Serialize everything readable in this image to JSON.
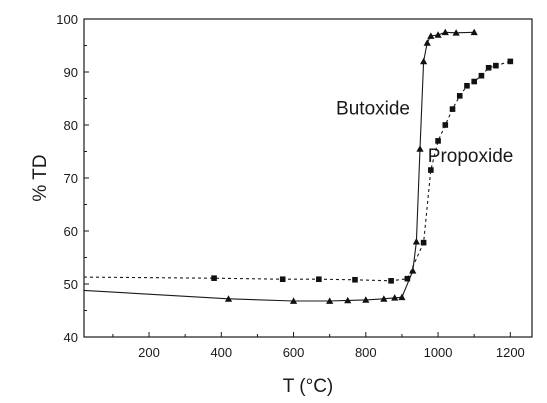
{
  "chart_data": {
    "type": "line",
    "xlabel": "T (°C)",
    "ylabel": "% TD",
    "xlim": [
      20,
      1260
    ],
    "ylim": [
      40,
      100
    ],
    "xticks": [
      200,
      400,
      600,
      800,
      1000,
      1200
    ],
    "yticks": [
      40,
      50,
      60,
      70,
      80,
      90,
      100
    ],
    "series": [
      {
        "name": "Butoxide",
        "marker": "triangle",
        "line_style": "solid",
        "points": [
          [
            20,
            48.8
          ],
          [
            420,
            47.2
          ],
          [
            600,
            46.8
          ],
          [
            700,
            46.8
          ],
          [
            750,
            46.9
          ],
          [
            800,
            47.0
          ],
          [
            850,
            47.2
          ],
          [
            880,
            47.4
          ],
          [
            900,
            47.5
          ],
          [
            930,
            52.5
          ],
          [
            940,
            58.0
          ],
          [
            950,
            75.5
          ],
          [
            960,
            92.0
          ],
          [
            970,
            95.5
          ],
          [
            980,
            96.8
          ],
          [
            1000,
            97.0
          ],
          [
            1020,
            97.5
          ],
          [
            1050,
            97.4
          ],
          [
            1100,
            97.5
          ]
        ]
      },
      {
        "name": "Propoxide",
        "marker": "square",
        "line_style": "dashed",
        "points": [
          [
            20,
            51.3
          ],
          [
            380,
            51.1
          ],
          [
            570,
            50.9
          ],
          [
            670,
            50.9
          ],
          [
            770,
            50.8
          ],
          [
            870,
            50.6
          ],
          [
            915,
            51.0
          ],
          [
            960,
            57.8
          ],
          [
            980,
            71.5
          ],
          [
            1000,
            77.0
          ],
          [
            1020,
            80.0
          ],
          [
            1040,
            83.0
          ],
          [
            1060,
            85.5
          ],
          [
            1080,
            87.4
          ],
          [
            1100,
            88.2
          ],
          [
            1120,
            89.3
          ],
          [
            1140,
            90.8
          ],
          [
            1160,
            91.2
          ],
          [
            1200,
            92.0
          ]
        ]
      }
    ],
    "annotations": [
      {
        "text": "Butoxide",
        "x": 820,
        "y": 82
      },
      {
        "text": "Propoxide",
        "x": 1090,
        "y": 73
      }
    ],
    "grid": false
  }
}
